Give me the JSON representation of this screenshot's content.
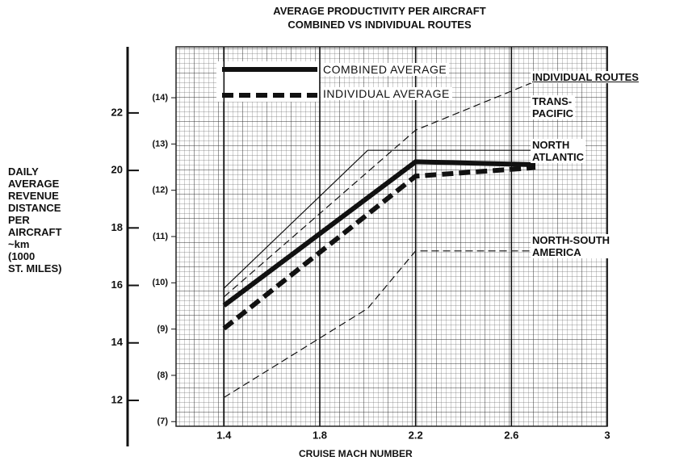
{
  "chart_data": {
    "type": "line",
    "title": "AVERAGE PRODUCTIVITY PER AIRCRAFT",
    "subtitle": "COMBINED VS INDIVIDUAL ROUTES",
    "x_label": "CRUISE MACH NUMBER",
    "y_label": "DAILY\nAVERAGE\nREVENUE\nDISTANCE\nPER\nAIRCRAFT\n~km\n(1000\nST. MILES)",
    "annotation": "INDIVIDUAL ROUTES",
    "xlim": [
      1.2,
      3.0
    ],
    "xticks": [
      1.4,
      1.8,
      2.2,
      2.6,
      3.0
    ],
    "ylim": [
      11.1,
      24.3
    ],
    "yticks": [
      12,
      14,
      16,
      18,
      20,
      22
    ],
    "y2lim": [
      6.9,
      15.1
    ],
    "y2ticks": [
      {
        "value": 7,
        "label": "(7)"
      },
      {
        "value": 8,
        "label": "(8)"
      },
      {
        "value": 9,
        "label": "(9)"
      },
      {
        "value": 10,
        "label": "(10)"
      },
      {
        "value": 11,
        "label": "(11)"
      },
      {
        "value": 12,
        "label": "(12)"
      },
      {
        "value": 13,
        "label": "(13)"
      },
      {
        "value": 14,
        "label": "(14)"
      }
    ],
    "grid": true,
    "legend": "upper left",
    "series": [
      {
        "name": "COMBINED AVERAGE",
        "color": "#111111",
        "line_style": "solid",
        "linewidth": 6,
        "x": [
          1.4,
          2.2,
          2.7
        ],
        "values": [
          15.3,
          20.3,
          20.2
        ]
      },
      {
        "name": "INDIVIDUAL AVERAGE",
        "color": "#111111",
        "line_style": "dashed",
        "linewidth": 6,
        "x": [
          1.4,
          2.2,
          2.7
        ],
        "values": [
          14.5,
          19.8,
          20.1
        ]
      },
      {
        "name": "TRANS-\nPACIFIC",
        "color": "#111111",
        "line_style": "dashed",
        "linewidth": 1.2,
        "x": [
          1.4,
          2.2,
          2.7
        ],
        "values": [
          15.6,
          21.4,
          23.1
        ]
      },
      {
        "name": "NORTH\nATLANTIC",
        "color": "#111111",
        "line_style": "solid",
        "linewidth": 1.2,
        "x": [
          1.4,
          2.0,
          2.7
        ],
        "values": [
          15.9,
          20.7,
          20.7
        ]
      },
      {
        "name": "NORTH-SOUTH\nAMERICA",
        "color": "#111111",
        "line_style": "dashed",
        "linewidth": 1.2,
        "x": [
          1.4,
          2.0,
          2.2,
          2.7
        ],
        "values": [
          12.1,
          15.2,
          17.2,
          17.2
        ]
      }
    ]
  }
}
